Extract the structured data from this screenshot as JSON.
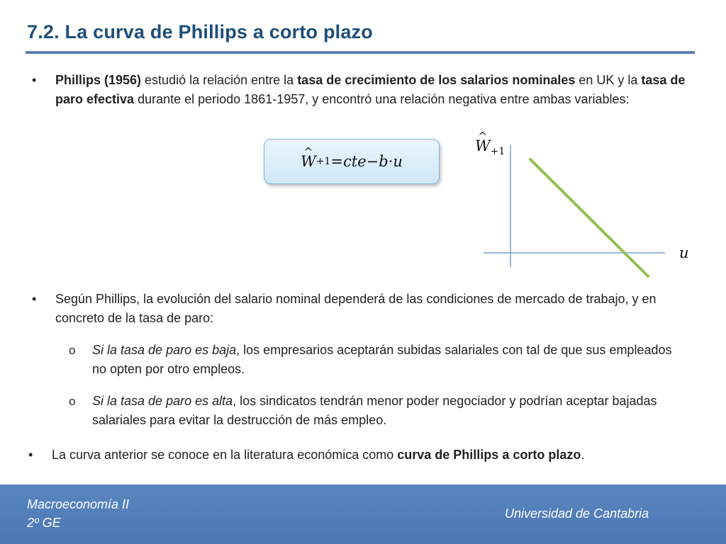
{
  "header": {
    "title": "7.2. La curva de Phillips a corto plazo"
  },
  "bullets": {
    "b1": {
      "marker": "•",
      "p1": "Phillips (1956)",
      "p2": " estudió la relación entre la ",
      "p3": "tasa de crecimiento de los salarios nominales",
      "p4": " en UK y la ",
      "p5": "tasa de paro efectiva",
      "p6": " durante el periodo 1861-1957, y encontró una relación negativa entre ambas variables:"
    },
    "b2": {
      "marker": "•",
      "text": "Según Phillips, la evolución del salario nominal dependerá de las condiciones de mercado de trabajo, y en concreto de la tasa de paro:"
    },
    "s1": {
      "marker": "o",
      "italic": "Si la tasa de paro es baja",
      "rest": ", los empresarios aceptarán subidas salariales con tal de que sus empleados no opten por otro empleos."
    },
    "s2": {
      "marker": "o",
      "italic": "Si la tasa de paro es alta",
      "rest": ", los sindicatos tendrán menor poder negociador y podrían aceptar bajadas salariales para evitar la destrucción de más empleo."
    },
    "b3": {
      "marker": "•",
      "p1": "La curva anterior se conoce en la literatura económica como ",
      "p2": "curva de Phillips a corto plazo",
      "p3": "."
    }
  },
  "formula": {
    "w": "W",
    "sub": "+1",
    "eq": " = ",
    "cte": "cte",
    "minus": " − ",
    "b": "b",
    "dot": " · ",
    "u": "u"
  },
  "graph": {
    "y_label": "W",
    "y_sub": "+1",
    "x_label": "u",
    "line_color": "#92c050",
    "axis_color": "#7f9fc7"
  },
  "footer": {
    "course": "Macroeconomía II",
    "group": "2º GE",
    "university": "Universidad de Cantabria"
  }
}
